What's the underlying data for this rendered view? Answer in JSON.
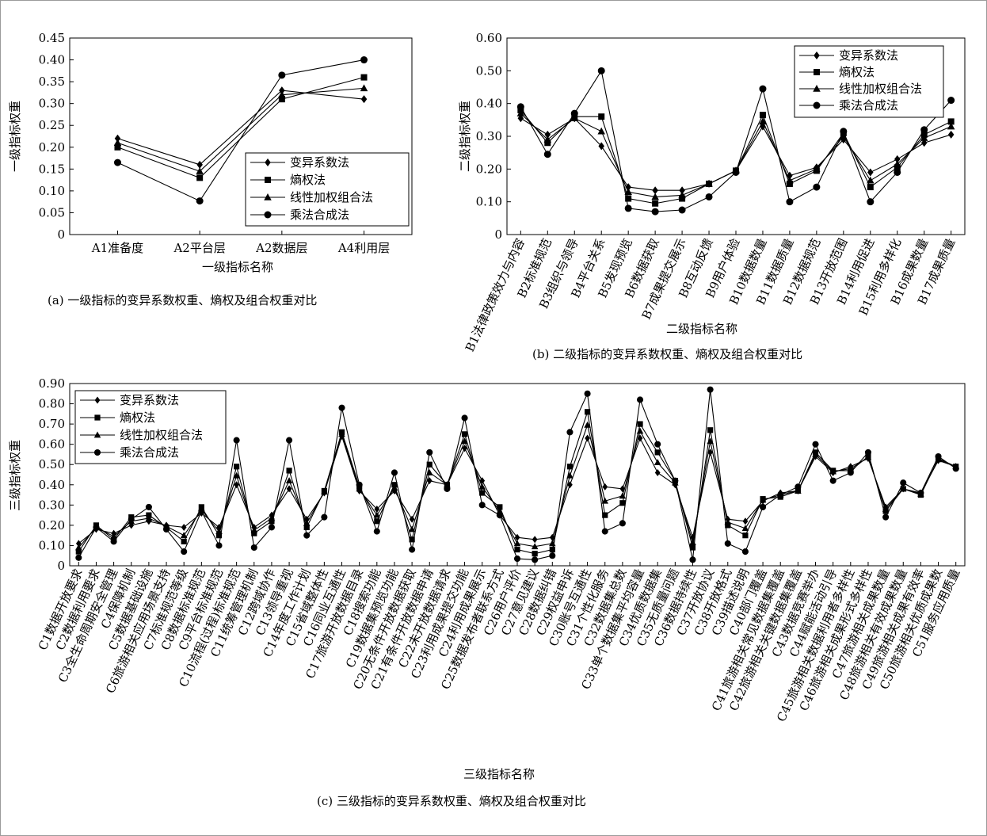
{
  "chart_data": [
    {
      "type": "line",
      "caption": "(a) 一级指标的变异系数权重、熵权及组合权重对比",
      "xlabel": "一级指标名称",
      "ylabel": "一级指标权重",
      "ylim": [
        0,
        0.45
      ],
      "yticks": [
        "0",
        "0.05",
        "0.10",
        "0.15",
        "0.20",
        "0.25",
        "0.30",
        "0.35",
        "0.40",
        "0.45"
      ],
      "categories": [
        "A1准备度",
        "A2平台层",
        "A2数据层",
        "A4利用层"
      ],
      "legend_position": "bottom-right",
      "series": [
        {
          "name": "变异系数法",
          "marker": "diamond",
          "values": [
            0.22,
            0.16,
            0.33,
            0.31
          ]
        },
        {
          "name": "熵权法",
          "marker": "square",
          "values": [
            0.2,
            0.13,
            0.31,
            0.36
          ]
        },
        {
          "name": "线性加权组合法",
          "marker": "triangle",
          "values": [
            0.21,
            0.145,
            0.32,
            0.335
          ]
        },
        {
          "name": "乘法合成法",
          "marker": "circle",
          "values": [
            0.165,
            0.077,
            0.365,
            0.4
          ]
        }
      ]
    },
    {
      "type": "line",
      "caption": "(b) 二级指标的变异系数权重、熵权及组合权重对比",
      "xlabel": "二级指标名称",
      "ylabel": "二级指标权重",
      "ylim": [
        0,
        0.6
      ],
      "yticks": [
        "0",
        "0.10",
        "0.20",
        "0.30",
        "0.40",
        "0.50",
        "0.60"
      ],
      "categories": [
        "B1法律政策效力与内容",
        "B2标准规范",
        "B3组织与领导",
        "B4平台关系",
        "B5发现预览",
        "B6数据获取",
        "B7成果提交展示",
        "B8互动反馈",
        "B9用户体验",
        "B10数据数量",
        "B11数据质量",
        "B12数据规范",
        "B13开放范围",
        "B14利用促进",
        "B15利用多样化",
        "B16成果数量",
        "B17成果质量"
      ],
      "legend_position": "top-right",
      "series": [
        {
          "name": "变异系数法",
          "marker": "diamond",
          "values": [
            0.355,
            0.305,
            0.355,
            0.27,
            0.145,
            0.135,
            0.135,
            0.155,
            0.195,
            0.33,
            0.18,
            0.205,
            0.29,
            0.19,
            0.23,
            0.28,
            0.305
          ]
        },
        {
          "name": "熵权法",
          "marker": "square",
          "values": [
            0.38,
            0.28,
            0.36,
            0.36,
            0.11,
            0.095,
            0.11,
            0.155,
            0.195,
            0.365,
            0.155,
            0.195,
            0.31,
            0.145,
            0.205,
            0.305,
            0.345
          ]
        },
        {
          "name": "线性加权组合法",
          "marker": "triangle",
          "values": [
            0.37,
            0.29,
            0.355,
            0.315,
            0.13,
            0.115,
            0.12,
            0.155,
            0.195,
            0.345,
            0.165,
            0.2,
            0.3,
            0.165,
            0.215,
            0.295,
            0.33
          ]
        },
        {
          "name": "乘法合成法",
          "marker": "circle",
          "values": [
            0.39,
            0.245,
            0.37,
            0.5,
            0.08,
            0.07,
            0.075,
            0.115,
            0.19,
            0.445,
            0.1,
            0.145,
            0.315,
            0.1,
            0.19,
            0.32,
            0.41
          ]
        }
      ]
    },
    {
      "type": "line",
      "caption": "(c) 三级指标的变异系数权重、熵权及组合权重对比",
      "xlabel": "三级指标名称",
      "ylabel": "三级指标权重",
      "ylim": [
        0,
        0.9
      ],
      "yticks": [
        "0",
        "0.10",
        "0.20",
        "0.30",
        "0.40",
        "0.50",
        "0.60",
        "0.70",
        "0.80",
        "0.90"
      ],
      "categories": [
        "C1数据开放要求",
        "C2数据利用要求",
        "C3全生命周期安全管理",
        "C4保障机制",
        "C5数据基础设施",
        "C6旅游相关应用场景支持",
        "C7标准规范等级",
        "C8数据标准规范",
        "C9平台标准规范",
        "C10流程(过程)标准规范",
        "C11统筹管理机制",
        "C12跨域协作",
        "C13领导重视",
        "C14年度工作计划",
        "C15省域整体性",
        "C16同业互通性",
        "C17旅游开放数据目录",
        "C18搜索功能",
        "C19数据集预览功能",
        "C20无条件开放数据获取",
        "C21有条件开放数据申请",
        "C22未开放数据请求",
        "C23利用成果提交功能",
        "C24利用成果展示",
        "C25数据发布者联系方式",
        "C26用户评价",
        "C27意见建议",
        "C28数据纠错",
        "C29权益申诉",
        "C30账号互通性",
        "C31个性化服务",
        "C32数据集总数",
        "C33单个数据集平均容量",
        "C34优质数据集",
        "C35无质量问题",
        "C36数据持续性",
        "C37开放协议",
        "C38开放格式",
        "C39描述说明",
        "C40部门覆盖",
        "C41旅游相关常见数据集覆盖",
        "C42旅游相关关键数据集覆盖",
        "C43数据竞赛举办",
        "C44赋能活动引导",
        "C45旅游相关数据利用者多样性",
        "C46旅游相关成果形式多样性",
        "C47旅游相关成果数量",
        "C48旅游相关有效成果数量",
        "C49旅游相关成果有效率",
        "C50旅游相关优质成果数",
        "C51服务应用质量"
      ],
      "legend_position": "top-left",
      "series": [
        {
          "name": "变异系数法",
          "marker": "diamond",
          "values": [
            0.11,
            0.18,
            0.16,
            0.2,
            0.22,
            0.2,
            0.19,
            0.26,
            0.19,
            0.4,
            0.19,
            0.25,
            0.38,
            0.23,
            0.36,
            0.64,
            0.37,
            0.28,
            0.37,
            0.23,
            0.42,
            0.4,
            0.58,
            0.42,
            0.25,
            0.14,
            0.13,
            0.14,
            0.4,
            0.63,
            0.39,
            0.38,
            0.63,
            0.46,
            0.4,
            0.14,
            0.56,
            0.23,
            0.22,
            0.32,
            0.36,
            0.37,
            0.54,
            0.46,
            0.49,
            0.53,
            0.29,
            0.38,
            0.36,
            0.52,
            0.49
          ]
        },
        {
          "name": "熵权法",
          "marker": "square",
          "values": [
            0.07,
            0.2,
            0.13,
            0.24,
            0.25,
            0.19,
            0.12,
            0.29,
            0.15,
            0.49,
            0.16,
            0.22,
            0.47,
            0.19,
            0.37,
            0.66,
            0.39,
            0.22,
            0.4,
            0.13,
            0.5,
            0.4,
            0.65,
            0.36,
            0.29,
            0.08,
            0.06,
            0.08,
            0.49,
            0.76,
            0.25,
            0.31,
            0.7,
            0.56,
            0.42,
            0.09,
            0.67,
            0.2,
            0.15,
            0.33,
            0.34,
            0.37,
            0.56,
            0.47,
            0.47,
            0.54,
            0.27,
            0.38,
            0.35,
            0.53,
            0.49
          ]
        },
        {
          "name": "线性加权组合法",
          "marker": "triangle",
          "values": [
            0.09,
            0.19,
            0.145,
            0.22,
            0.235,
            0.195,
            0.15,
            0.275,
            0.17,
            0.445,
            0.175,
            0.235,
            0.42,
            0.21,
            0.365,
            0.65,
            0.38,
            0.25,
            0.385,
            0.18,
            0.46,
            0.4,
            0.615,
            0.39,
            0.27,
            0.11,
            0.095,
            0.11,
            0.445,
            0.695,
            0.32,
            0.345,
            0.665,
            0.51,
            0.41,
            0.115,
            0.615,
            0.215,
            0.185,
            0.325,
            0.35,
            0.37,
            0.55,
            0.465,
            0.48,
            0.535,
            0.28,
            0.38,
            0.355,
            0.525,
            0.49
          ]
        },
        {
          "name": "乘法合成法",
          "marker": "circle",
          "values": [
            0.04,
            0.19,
            0.12,
            0.23,
            0.29,
            0.18,
            0.07,
            0.27,
            0.1,
            0.62,
            0.09,
            0.19,
            0.62,
            0.15,
            0.24,
            0.78,
            0.4,
            0.17,
            0.46,
            0.08,
            0.56,
            0.38,
            0.73,
            0.3,
            0.25,
            0.035,
            0.03,
            0.05,
            0.66,
            0.85,
            0.17,
            0.21,
            0.82,
            0.6,
            0.42,
            0.03,
            0.87,
            0.11,
            0.07,
            0.29,
            0.35,
            0.39,
            0.6,
            0.42,
            0.46,
            0.56,
            0.24,
            0.41,
            0.36,
            0.54,
            0.48
          ]
        }
      ]
    }
  ]
}
